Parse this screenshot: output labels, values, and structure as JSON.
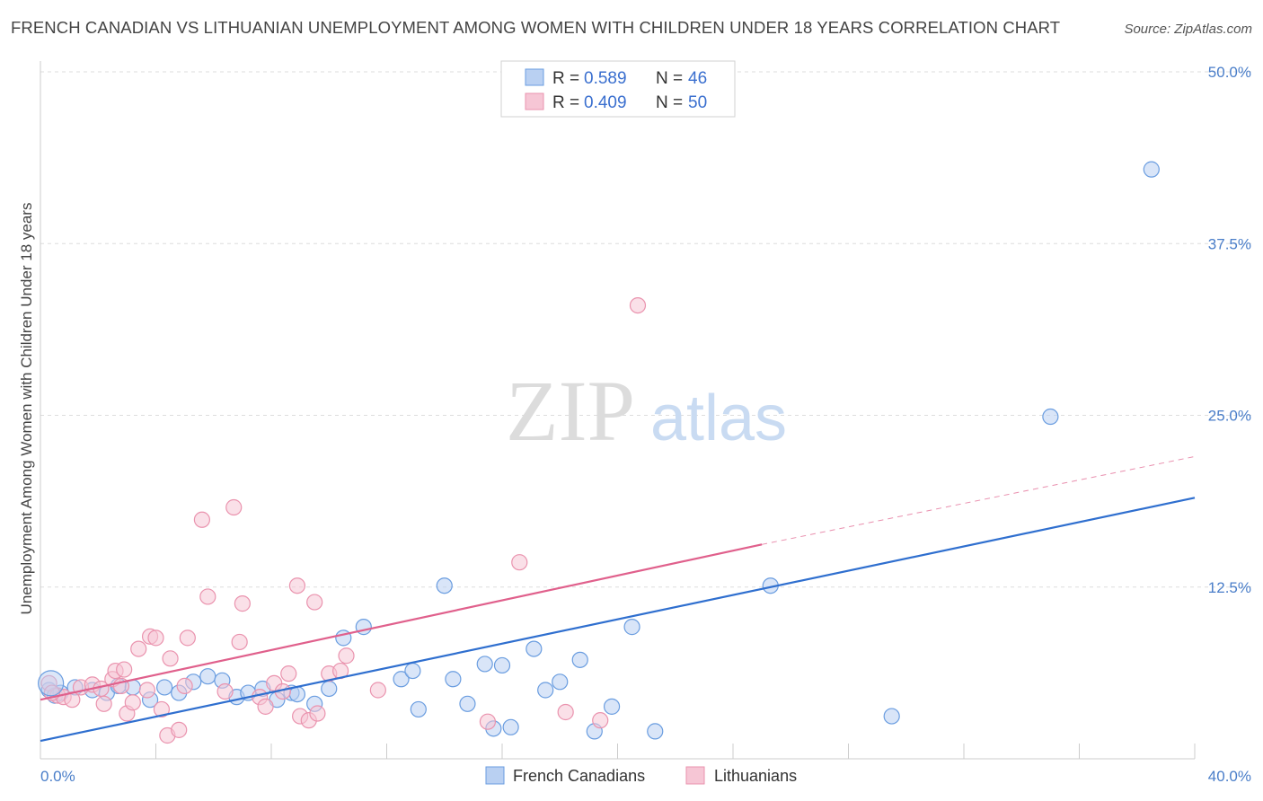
{
  "title": "FRENCH CANADIAN VS LITHUANIAN UNEMPLOYMENT AMONG WOMEN WITH CHILDREN UNDER 18 YEARS CORRELATION CHART",
  "source": "Source: ZipAtlas.com",
  "watermark": {
    "zip": "ZIP",
    "atlas": "atlas"
  },
  "legend": {
    "rows": [
      {
        "r_label": "R =",
        "r_value": "0.589",
        "n_label": "N =",
        "n_value": "46"
      },
      {
        "r_label": "R =",
        "r_value": "0.409",
        "n_label": "N =",
        "n_value": "50"
      }
    ]
  },
  "chart_data": {
    "type": "scatter",
    "ylabel": "Unemployment Among Women with Children Under 18 years",
    "xlim": [
      0,
      40
    ],
    "ylim": [
      0,
      50
    ],
    "x_tick_labels": [
      {
        "value": 0,
        "label": "0.0%"
      },
      {
        "value": 40,
        "label": "40.0%"
      }
    ],
    "y_tick_labels": [
      {
        "value": 12.5,
        "label": "12.5%"
      },
      {
        "value": 25,
        "label": "25.0%"
      },
      {
        "value": 37.5,
        "label": "37.5%"
      },
      {
        "value": 50,
        "label": "50.0%"
      }
    ],
    "grid": true,
    "legend_position": "top-center",
    "series": [
      {
        "name": "French Canadians",
        "color": "#6a9de0",
        "fill": "#b9d0f2",
        "line_color": "#2f6fcf",
        "trend": {
          "x0": 0,
          "y0": 1.3,
          "x1": 40,
          "y1": 19.0
        },
        "points": [
          [
            0.3,
            5.0
          ],
          [
            0.5,
            4.6
          ],
          [
            0.7,
            4.8
          ],
          [
            1.2,
            5.2
          ],
          [
            1.8,
            5.0
          ],
          [
            2.3,
            4.8
          ],
          [
            2.7,
            5.3
          ],
          [
            3.2,
            5.2
          ],
          [
            3.8,
            4.3
          ],
          [
            4.3,
            5.2
          ],
          [
            4.8,
            4.8
          ],
          [
            5.3,
            5.6
          ],
          [
            5.8,
            6.0
          ],
          [
            6.3,
            5.7
          ],
          [
            6.8,
            4.5
          ],
          [
            7.2,
            4.8
          ],
          [
            7.7,
            5.1
          ],
          [
            8.2,
            4.3
          ],
          [
            8.7,
            4.8
          ],
          [
            8.9,
            4.7
          ],
          [
            9.5,
            4.0
          ],
          [
            10.0,
            5.1
          ],
          [
            10.5,
            8.8
          ],
          [
            11.2,
            9.6
          ],
          [
            12.5,
            5.8
          ],
          [
            12.9,
            6.4
          ],
          [
            13.1,
            3.6
          ],
          [
            14.0,
            12.6
          ],
          [
            14.3,
            5.8
          ],
          [
            14.8,
            4.0
          ],
          [
            15.4,
            6.9
          ],
          [
            15.7,
            2.2
          ],
          [
            16.0,
            6.8
          ],
          [
            16.3,
            2.3
          ],
          [
            17.1,
            8.0
          ],
          [
            17.5,
            5.0
          ],
          [
            18.0,
            5.6
          ],
          [
            18.7,
            7.2
          ],
          [
            19.2,
            2.0
          ],
          [
            19.8,
            3.8
          ],
          [
            20.5,
            9.6
          ],
          [
            21.3,
            2.0
          ],
          [
            25.3,
            12.6
          ],
          [
            29.5,
            3.1
          ],
          [
            35.0,
            24.9
          ],
          [
            38.5,
            42.9
          ]
        ]
      },
      {
        "name": "Lithuanians",
        "color": "#ea93ae",
        "fill": "#f6c6d5",
        "line_color": "#e0608c",
        "trend": {
          "x0": 0,
          "y0": 4.3,
          "x1": 25,
          "y1": 15.6
        },
        "trend_extension": {
          "x0": 25,
          "y0": 15.6,
          "x1": 40,
          "y1": 22.0
        },
        "points": [
          [
            0.3,
            5.5
          ],
          [
            0.6,
            4.6
          ],
          [
            0.8,
            4.5
          ],
          [
            1.1,
            4.3
          ],
          [
            1.4,
            5.2
          ],
          [
            1.8,
            5.4
          ],
          [
            2.1,
            5.1
          ],
          [
            2.2,
            4.0
          ],
          [
            2.5,
            5.8
          ],
          [
            2.6,
            6.4
          ],
          [
            2.8,
            5.3
          ],
          [
            2.9,
            6.5
          ],
          [
            3.0,
            3.3
          ],
          [
            3.2,
            4.1
          ],
          [
            3.4,
            8.0
          ],
          [
            3.7,
            5.0
          ],
          [
            3.8,
            8.9
          ],
          [
            4.0,
            8.8
          ],
          [
            4.2,
            3.6
          ],
          [
            4.4,
            1.7
          ],
          [
            4.5,
            7.3
          ],
          [
            4.8,
            2.1
          ],
          [
            5.0,
            5.3
          ],
          [
            5.1,
            8.8
          ],
          [
            5.6,
            17.4
          ],
          [
            5.8,
            11.8
          ],
          [
            6.4,
            4.9
          ],
          [
            6.7,
            18.3
          ],
          [
            6.9,
            8.5
          ],
          [
            7.0,
            11.3
          ],
          [
            7.6,
            4.5
          ],
          [
            7.8,
            3.8
          ],
          [
            8.1,
            5.5
          ],
          [
            8.4,
            4.9
          ],
          [
            8.6,
            6.2
          ],
          [
            8.9,
            12.6
          ],
          [
            9.0,
            3.1
          ],
          [
            9.3,
            2.8
          ],
          [
            9.5,
            11.4
          ],
          [
            9.6,
            3.3
          ],
          [
            10.0,
            6.2
          ],
          [
            10.4,
            6.4
          ],
          [
            10.6,
            7.5
          ],
          [
            11.7,
            5.0
          ],
          [
            15.5,
            2.7
          ],
          [
            16.6,
            14.3
          ],
          [
            18.2,
            3.4
          ],
          [
            19.4,
            2.8
          ],
          [
            20.7,
            33.0
          ],
          [
            0.4,
            4.8
          ]
        ]
      }
    ]
  }
}
